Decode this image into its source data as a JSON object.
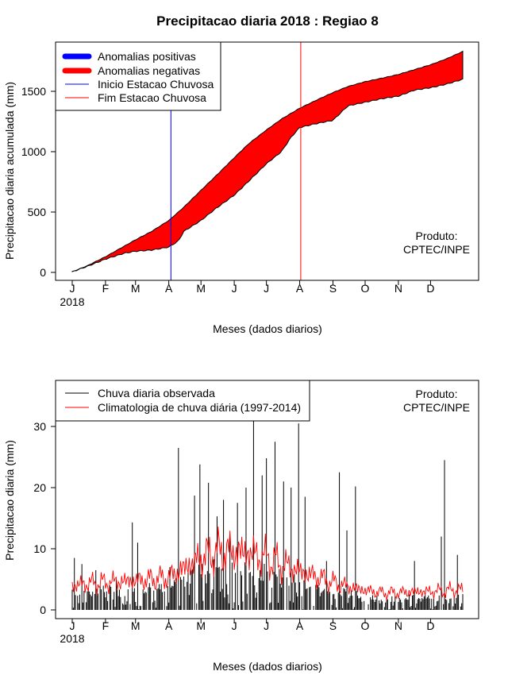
{
  "chart_data": [
    {
      "type": "area",
      "title": "Precipitacao diaria 2018 : Regiao 8",
      "xlabel": "Meses (dados diarios)",
      "ylabel": "Precipitacao diaria acumulada (mm)",
      "year_label": "2018",
      "x_ticks": [
        "J",
        "F",
        "M",
        "A",
        "M",
        "J",
        "J",
        "A",
        "S",
        "O",
        "N",
        "D"
      ],
      "x_unit": "day of year",
      "xlim": [
        1,
        365
      ],
      "ylim": [
        0,
        1850
      ],
      "y_ticks": [
        0,
        500,
        1000,
        1500
      ],
      "credit": [
        "Produto:",
        "CPTEC/INPE"
      ],
      "legend": {
        "placement": "top-left",
        "entries": [
          {
            "label": "Anomalias positivas",
            "color": "#0000ff",
            "style": "thick"
          },
          {
            "label": "Anomalias negativas",
            "color": "#ff0000",
            "style": "thick"
          },
          {
            "label": "Inicio Estacao Chuvosa",
            "color": "#0000ff",
            "style": "thin"
          },
          {
            "label": "Fim Estacao Chuvosa",
            "color": "#ff0000",
            "style": "thin"
          }
        ]
      },
      "rainy_season_start_day": 93,
      "rainy_season_end_day": 214,
      "series": [
        {
          "name": "Climatologia",
          "role": "upper",
          "x": [
            1,
            15,
            32,
            50,
            60,
            75,
            91,
            105,
            121,
            135,
            152,
            166,
            182,
            196,
            213,
            227,
            244,
            258,
            274,
            290,
            305,
            320,
            335,
            350,
            365
          ],
          "values": [
            5,
            55,
            130,
            220,
            270,
            340,
            430,
            540,
            680,
            800,
            950,
            1070,
            1180,
            1270,
            1360,
            1420,
            1490,
            1540,
            1580,
            1610,
            1640,
            1680,
            1720,
            1770,
            1830
          ]
        },
        {
          "name": "Observada",
          "role": "lower",
          "x": [
            1,
            15,
            32,
            50,
            60,
            75,
            91,
            100,
            105,
            121,
            135,
            152,
            166,
            182,
            196,
            205,
            213,
            227,
            244,
            258,
            274,
            290,
            305,
            320,
            335,
            350,
            365
          ],
          "values": [
            5,
            50,
            110,
            160,
            175,
            185,
            210,
            260,
            340,
            430,
            530,
            640,
            760,
            900,
            1000,
            1120,
            1200,
            1230,
            1260,
            1380,
            1410,
            1440,
            1460,
            1510,
            1530,
            1560,
            1600
          ]
        }
      ],
      "fill_color": "#ff0000"
    },
    {
      "type": "bar",
      "xlabel": "Meses (dados diarios)",
      "ylabel": "Precipitacao diaria (mm)",
      "year_label": "2018",
      "x_ticks": [
        "J",
        "F",
        "M",
        "A",
        "M",
        "J",
        "J",
        "A",
        "S",
        "O",
        "N",
        "D"
      ],
      "xlim": [
        1,
        365
      ],
      "ylim": [
        0,
        37
      ],
      "y_ticks": [
        0,
        10,
        20,
        30
      ],
      "credit": [
        "Produto:",
        "CPTEC/INPE"
      ],
      "legend": {
        "placement": "top-left",
        "entries": [
          {
            "label": "Chuva diaria observada",
            "color": "#000000"
          },
          {
            "label": "Climatologia de chuva diária (1997-2014)",
            "color": "#ff0000"
          }
        ]
      },
      "observed_peaks": [
        {
          "day": 3,
          "value": 8.5
        },
        {
          "day": 10,
          "value": 7.5
        },
        {
          "day": 23,
          "value": 6.5
        },
        {
          "day": 42,
          "value": 5
        },
        {
          "day": 57,
          "value": 14.3
        },
        {
          "day": 62,
          "value": 11
        },
        {
          "day": 92,
          "value": 7
        },
        {
          "day": 100,
          "value": 26.5
        },
        {
          "day": 115,
          "value": 18.7
        },
        {
          "day": 120,
          "value": 23.8
        },
        {
          "day": 128,
          "value": 20.8
        },
        {
          "day": 136,
          "value": 15.3
        },
        {
          "day": 142,
          "value": 18
        },
        {
          "day": 148,
          "value": 12
        },
        {
          "day": 155,
          "value": 17.5
        },
        {
          "day": 163,
          "value": 20
        },
        {
          "day": 170,
          "value": 31
        },
        {
          "day": 178,
          "value": 22
        },
        {
          "day": 182,
          "value": 24.8
        },
        {
          "day": 190,
          "value": 27.5
        },
        {
          "day": 198,
          "value": 21
        },
        {
          "day": 205,
          "value": 20
        },
        {
          "day": 212,
          "value": 30.5
        },
        {
          "day": 218,
          "value": 18.5
        },
        {
          "day": 238,
          "value": 8
        },
        {
          "day": 250,
          "value": 22.5
        },
        {
          "day": 257,
          "value": 13
        },
        {
          "day": 265,
          "value": 20.2
        },
        {
          "day": 320,
          "value": 8
        },
        {
          "day": 348,
          "value": 24.5
        },
        {
          "day": 345,
          "value": 12
        },
        {
          "day": 360,
          "value": 9
        }
      ],
      "climatology_envelope": {
        "x": [
          1,
          15,
          32,
          60,
          91,
          105,
          121,
          135,
          152,
          166,
          182,
          196,
          213,
          227,
          244,
          258,
          274,
          290,
          305,
          320,
          335,
          350,
          365
        ],
        "values": [
          4,
          4.3,
          4.5,
          4.8,
          5.3,
          6.8,
          8.5,
          9.5,
          9.5,
          9.3,
          8.5,
          7.5,
          6.3,
          5.5,
          4.5,
          3.8,
          3.2,
          2.8,
          2.8,
          3,
          3,
          3.2,
          3.3
        ]
      }
    }
  ]
}
